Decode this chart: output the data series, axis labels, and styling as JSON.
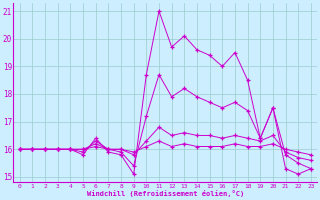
{
  "xlabel": "Windchill (Refroidissement éolien,°C)",
  "background_color": "#cceeff",
  "line_color": "#cc00cc",
  "grid_color": "#99cccc",
  "xlim": [
    -0.5,
    23.5
  ],
  "ylim": [
    14.8,
    21.3
  ],
  "yticks": [
    15,
    16,
    17,
    18,
    19,
    20,
    21
  ],
  "xticks": [
    0,
    1,
    2,
    3,
    4,
    5,
    6,
    7,
    8,
    9,
    10,
    11,
    12,
    13,
    14,
    15,
    16,
    17,
    18,
    19,
    20,
    21,
    22,
    23
  ],
  "series": [
    [
      16.0,
      16.0,
      16.0,
      16.0,
      16.0,
      15.8,
      16.4,
      15.9,
      15.8,
      15.1,
      18.7,
      21.0,
      19.7,
      20.1,
      19.6,
      19.4,
      19.0,
      19.5,
      18.5,
      16.4,
      17.5,
      15.3,
      15.1,
      15.3
    ],
    [
      16.0,
      16.0,
      16.0,
      16.0,
      16.0,
      15.9,
      16.3,
      16.0,
      15.9,
      15.4,
      17.2,
      18.7,
      17.9,
      18.2,
      17.9,
      17.7,
      17.5,
      17.7,
      17.4,
      16.4,
      17.5,
      15.8,
      15.5,
      15.3
    ],
    [
      16.0,
      16.0,
      16.0,
      16.0,
      16.0,
      16.0,
      16.2,
      16.0,
      16.0,
      15.8,
      16.3,
      16.8,
      16.5,
      16.6,
      16.5,
      16.5,
      16.4,
      16.5,
      16.4,
      16.3,
      16.5,
      15.9,
      15.7,
      15.6
    ],
    [
      16.0,
      16.0,
      16.0,
      16.0,
      16.0,
      16.0,
      16.1,
      16.0,
      16.0,
      15.9,
      16.1,
      16.3,
      16.1,
      16.2,
      16.1,
      16.1,
      16.1,
      16.2,
      16.1,
      16.1,
      16.2,
      16.0,
      15.9,
      15.8
    ]
  ]
}
